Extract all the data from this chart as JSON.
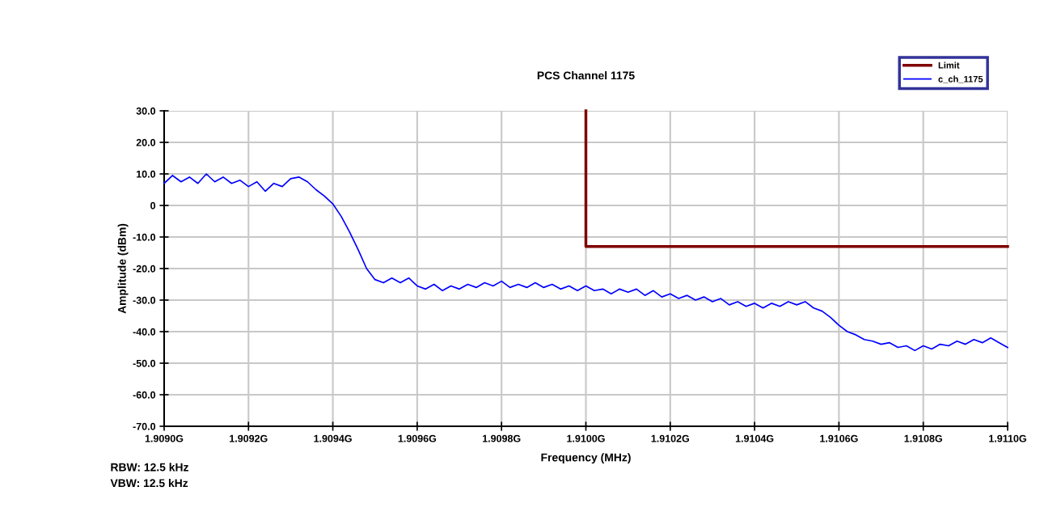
{
  "chart_data": {
    "type": "line",
    "title": "PCS Channel 1175",
    "xlabel": "Frequency (MHz)",
    "ylabel": "Amplitude (dBm)",
    "annotations": [
      "RBW: 12.5 kHz",
      "VBW: 12.5 kHz"
    ],
    "series": [
      {
        "name": "Limit",
        "color": "#800000",
        "x": [
          1.91,
          1.91,
          1.911
        ],
        "values": [
          30,
          -13,
          -13
        ]
      },
      {
        "name": "c_ch_1175",
        "color": "#0000ff",
        "x": [
          1.909,
          1.90902,
          1.90904,
          1.90906,
          1.90908,
          1.9091,
          1.90912,
          1.90914,
          1.90916,
          1.90918,
          1.9092,
          1.90922,
          1.90924,
          1.90926,
          1.90928,
          1.9093,
          1.90932,
          1.90934,
          1.90936,
          1.90938,
          1.9094,
          1.90942,
          1.90944,
          1.90946,
          1.90948,
          1.9095,
          1.90952,
          1.90954,
          1.90956,
          1.90958,
          1.9096,
          1.90962,
          1.90964,
          1.90966,
          1.90968,
          1.9097,
          1.90972,
          1.90974,
          1.90976,
          1.90978,
          1.9098,
          1.90982,
          1.90984,
          1.90986,
          1.90988,
          1.9099,
          1.90992,
          1.90994,
          1.90996,
          1.90998,
          1.91,
          1.91002,
          1.91004,
          1.91006,
          1.91008,
          1.9101,
          1.91012,
          1.91014,
          1.91016,
          1.91018,
          1.9102,
          1.91022,
          1.91024,
          1.91026,
          1.91028,
          1.9103,
          1.91032,
          1.91034,
          1.91036,
          1.91038,
          1.9104,
          1.91042,
          1.91044,
          1.91046,
          1.91048,
          1.9105,
          1.91052,
          1.91054,
          1.91056,
          1.91058,
          1.9106,
          1.91062,
          1.91064,
          1.91066,
          1.91068,
          1.9107,
          1.91072,
          1.91074,
          1.91076,
          1.91078,
          1.9108,
          1.91082,
          1.91084,
          1.91086,
          1.91088,
          1.9109,
          1.91092,
          1.91094,
          1.91096,
          1.91098,
          1.911
        ],
        "values": [
          7.0,
          9.5,
          7.5,
          9.0,
          7.0,
          10.0,
          7.5,
          9.0,
          7.0,
          8.0,
          6.0,
          7.5,
          4.5,
          7.0,
          6.0,
          8.5,
          9.0,
          7.5,
          5.0,
          3.0,
          0.5,
          -3.5,
          -8.5,
          -14.0,
          -20.0,
          -23.5,
          -24.5,
          -23.0,
          -24.5,
          -23.0,
          -25.5,
          -26.5,
          -25.0,
          -27.0,
          -25.5,
          -26.5,
          -25.0,
          -26.0,
          -24.5,
          -25.5,
          -24.0,
          -26.0,
          -25.0,
          -26.0,
          -24.5,
          -26.0,
          -25.0,
          -26.5,
          -25.5,
          -27.0,
          -25.5,
          -27.0,
          -26.5,
          -28.0,
          -26.5,
          -27.5,
          -26.5,
          -28.5,
          -27.0,
          -29.0,
          -28.0,
          -29.5,
          -28.5,
          -30.0,
          -29.0,
          -30.5,
          -29.5,
          -31.5,
          -30.5,
          -32.0,
          -31.0,
          -32.5,
          -31.0,
          -32.0,
          -30.5,
          -31.5,
          -30.5,
          -32.5,
          -33.5,
          -35.5,
          -38.0,
          -40.0,
          -41.0,
          -42.5,
          -43.0,
          -44.0,
          -43.5,
          -45.0,
          -44.5,
          -46.0,
          -44.5,
          -45.5,
          -44.0,
          -44.5,
          -43.0,
          -44.0,
          -42.5,
          -43.5,
          -42.0,
          -43.5,
          -45.0
        ]
      }
    ],
    "xlim": [
      1.909,
      1.911
    ],
    "xticks": [
      {
        "value": 1.909,
        "label": "1.9090G"
      },
      {
        "value": 1.9092,
        "label": "1.9092G"
      },
      {
        "value": 1.9094,
        "label": "1.9094G"
      },
      {
        "value": 1.9096,
        "label": "1.9096G"
      },
      {
        "value": 1.9098,
        "label": "1.9098G"
      },
      {
        "value": 1.91,
        "label": "1.9100G"
      },
      {
        "value": 1.9102,
        "label": "1.9102G"
      },
      {
        "value": 1.9104,
        "label": "1.9104G"
      },
      {
        "value": 1.9106,
        "label": "1.9106G"
      },
      {
        "value": 1.9108,
        "label": "1.9108G"
      },
      {
        "value": 1.911,
        "label": "1.9110G"
      }
    ],
    "ylim": [
      -70,
      30
    ],
    "yticks": [
      {
        "value": -70,
        "label": "-70.0"
      },
      {
        "value": -60,
        "label": "-60.0"
      },
      {
        "value": -50,
        "label": "-50.0"
      },
      {
        "value": -40,
        "label": "-40.0"
      },
      {
        "value": -30,
        "label": "-30.0"
      },
      {
        "value": -20,
        "label": "-20.0"
      },
      {
        "value": -10,
        "label": "-10.0"
      },
      0,
      {
        "value": 10,
        "label": "10.0"
      },
      {
        "value": 20,
        "label": "20.0"
      },
      {
        "value": 30,
        "label": "30.0"
      }
    ],
    "grid": true,
    "legend": "top right"
  }
}
